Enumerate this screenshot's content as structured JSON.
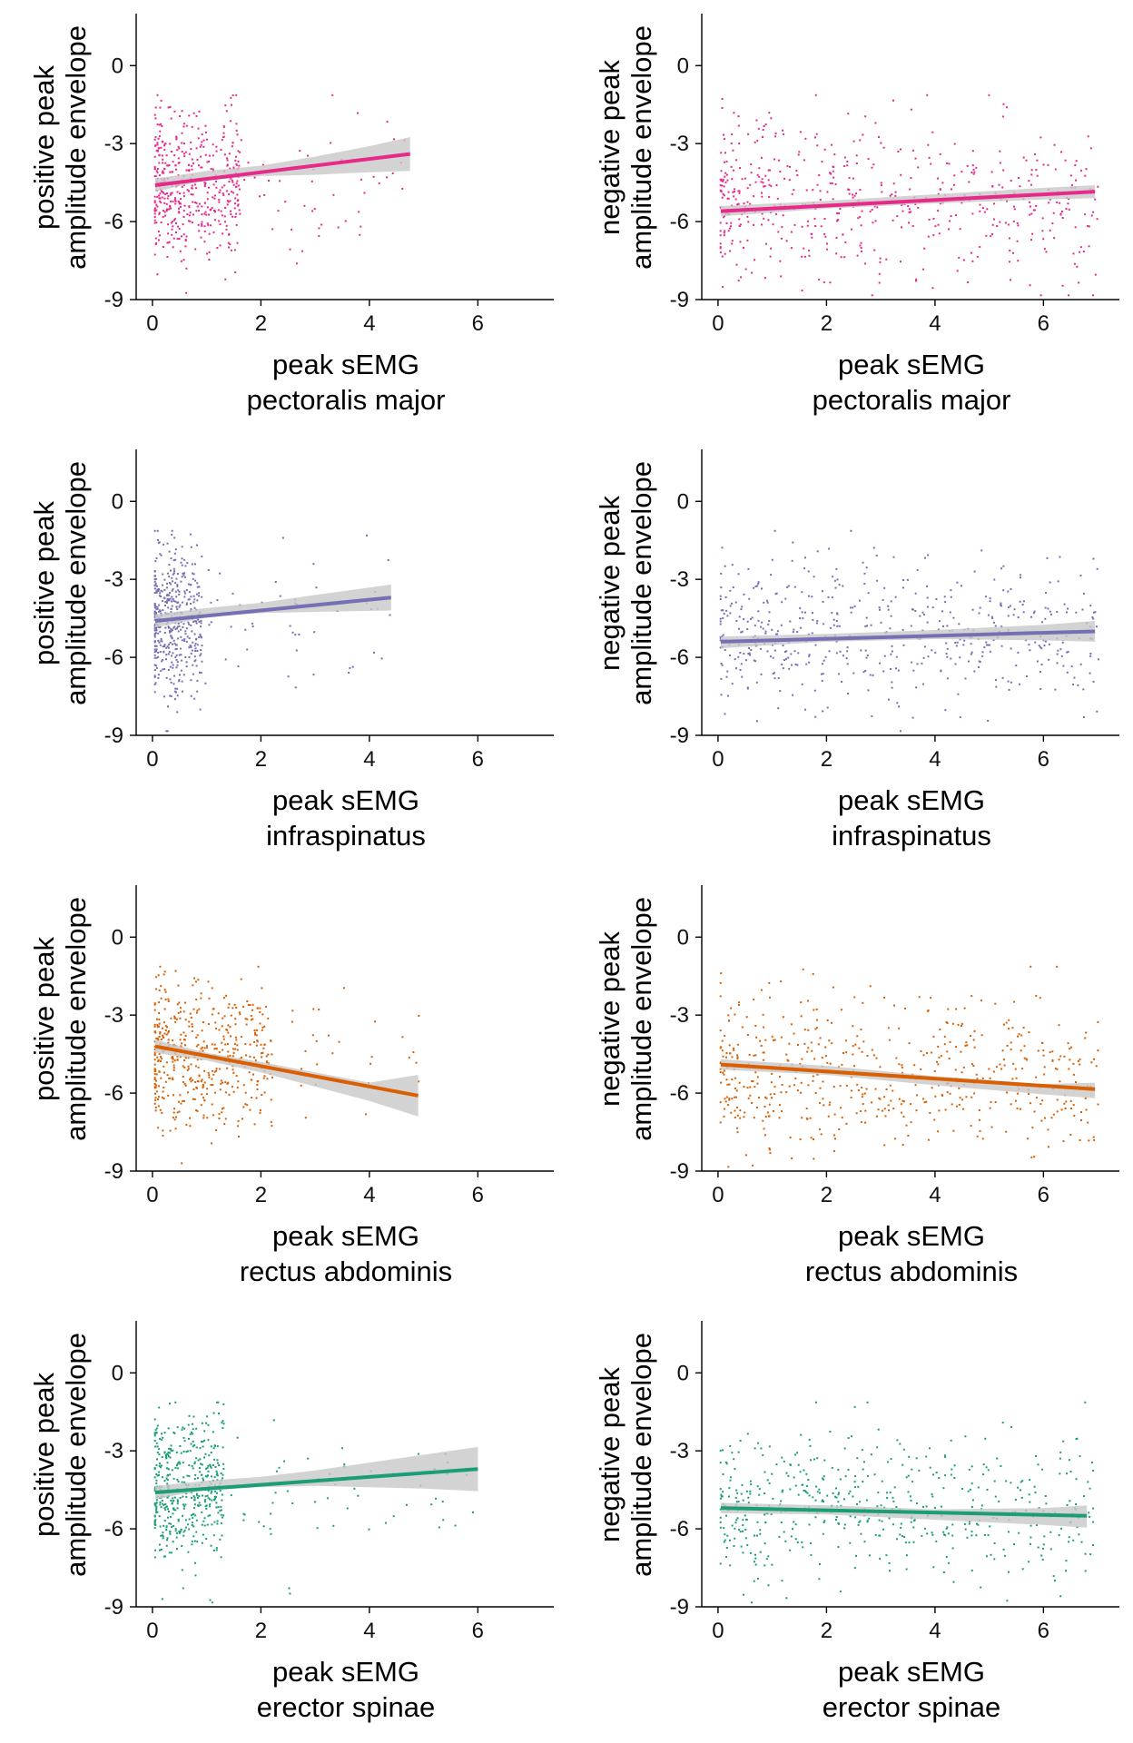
{
  "colors": {
    "pectoralis": "#e7298a",
    "infraspinatus": "#7570b3",
    "rectus": "#d95f02",
    "erector": "#1b9e77",
    "ci_band": "#c8c8c8",
    "axis": "#000000"
  },
  "chart_data": [
    {
      "type": "scatter",
      "panel": "row1-left",
      "color_key": "pectoralis",
      "ylabel_line1": "positive peak",
      "ylabel_line2": "amplitude envelope",
      "xlabel_line1": "peak sEMG",
      "xlabel_line2": "pectoralis major",
      "xlim": [
        -0.3,
        7.4
      ],
      "ylim": [
        -9,
        2
      ],
      "xticks": [
        0,
        2,
        4,
        6
      ],
      "yticks": [
        -9,
        -6,
        -3,
        0
      ],
      "fit": {
        "x": [
          0.05,
          4.75
        ],
        "y": [
          -4.6,
          -3.4
        ]
      },
      "ci": {
        "x": [
          0.05,
          1.0,
          2.0,
          3.0,
          4.0,
          4.75
        ],
        "lower": [
          -4.85,
          -4.4,
          -4.25,
          -4.2,
          -4.1,
          -4.05
        ],
        "upper": [
          -4.35,
          -4.05,
          -3.85,
          -3.5,
          -3.1,
          -2.75
        ]
      },
      "points_summary": {
        "n": 520,
        "cluster_x": [
          0,
          1.6
        ],
        "cluster_y_mean": -4.5,
        "cluster_y_sd": 1.4,
        "sparse_x_max": 4.8
      }
    },
    {
      "type": "scatter",
      "panel": "row1-right",
      "color_key": "pectoralis",
      "ylabel_line1": "negative peak",
      "ylabel_line2": "amplitude envelope",
      "xlabel_line1": "peak sEMG",
      "xlabel_line2": "pectoralis major",
      "xlim": [
        -0.3,
        7.4
      ],
      "ylim": [
        -9,
        2
      ],
      "xticks": [
        0,
        2,
        4,
        6
      ],
      "yticks": [
        -9,
        -6,
        -3,
        0
      ],
      "fit": {
        "x": [
          0.05,
          6.95
        ],
        "y": [
          -5.6,
          -4.85
        ]
      },
      "ci": {
        "x": [
          0.05,
          2.0,
          4.0,
          6.0,
          6.95
        ],
        "lower": [
          -5.8,
          -5.5,
          -5.3,
          -5.15,
          -5.1
        ],
        "upper": [
          -5.4,
          -5.2,
          -4.95,
          -4.7,
          -4.6
        ]
      },
      "points_summary": {
        "n": 560,
        "cluster_x": [
          0,
          7
        ],
        "cluster_y_mean": -5.2,
        "cluster_y_sd": 1.5,
        "sparse_x_max": 7.0
      }
    },
    {
      "type": "scatter",
      "panel": "row2-left",
      "color_key": "infraspinatus",
      "ylabel_line1": "positive peak",
      "ylabel_line2": "amplitude envelope",
      "xlabel_line1": "peak sEMG",
      "xlabel_line2": "infraspinatus",
      "xlim": [
        -0.3,
        7.4
      ],
      "ylim": [
        -9,
        2
      ],
      "xticks": [
        0,
        2,
        4,
        6
      ],
      "yticks": [
        -9,
        -6,
        -3,
        0
      ],
      "fit": {
        "x": [
          0.05,
          4.4
        ],
        "y": [
          -4.6,
          -3.7
        ]
      },
      "ci": {
        "x": [
          0.05,
          1.0,
          2.0,
          3.0,
          4.4
        ],
        "lower": [
          -4.85,
          -4.45,
          -4.3,
          -4.25,
          -4.2
        ],
        "upper": [
          -4.35,
          -4.1,
          -3.9,
          -3.6,
          -3.2
        ]
      },
      "points_summary": {
        "n": 500,
        "cluster_x": [
          0,
          0.9
        ],
        "cluster_y_mean": -4.5,
        "cluster_y_sd": 1.4,
        "sparse_x_max": 4.4
      }
    },
    {
      "type": "scatter",
      "panel": "row2-right",
      "color_key": "infraspinatus",
      "ylabel_line1": "negative peak",
      "ylabel_line2": "amplitude envelope",
      "xlabel_line1": "peak sEMG",
      "xlabel_line2": "infraspinatus",
      "xlim": [
        -0.3,
        7.4
      ],
      "ylim": [
        -9,
        2
      ],
      "xticks": [
        0,
        2,
        4,
        6
      ],
      "yticks": [
        -9,
        -6,
        -3,
        0
      ],
      "fit": {
        "x": [
          0.05,
          6.95
        ],
        "y": [
          -5.4,
          -5.0
        ]
      },
      "ci": {
        "x": [
          0.05,
          2.0,
          4.0,
          6.0,
          6.95
        ],
        "lower": [
          -5.65,
          -5.4,
          -5.3,
          -5.35,
          -5.4
        ],
        "upper": [
          -5.2,
          -5.1,
          -4.95,
          -4.75,
          -4.6
        ]
      },
      "points_summary": {
        "n": 540,
        "cluster_x": [
          0,
          7
        ],
        "cluster_y_mean": -5.0,
        "cluster_y_sd": 1.4,
        "sparse_x_max": 7.0
      }
    },
    {
      "type": "scatter",
      "panel": "row3-left",
      "color_key": "rectus",
      "ylabel_line1": "positive peak",
      "ylabel_line2": "amplitude envelope",
      "xlabel_line1": "peak sEMG",
      "xlabel_line2": "rectus abdominis",
      "xlim": [
        -0.3,
        7.4
      ],
      "ylim": [
        -9,
        2
      ],
      "xticks": [
        0,
        2,
        4,
        6
      ],
      "yticks": [
        -9,
        -6,
        -3,
        0
      ],
      "fit": {
        "x": [
          0.05,
          4.9
        ],
        "y": [
          -4.2,
          -6.1
        ]
      },
      "ci": {
        "x": [
          0.05,
          1.0,
          2.0,
          3.0,
          4.0,
          4.9
        ],
        "lower": [
          -4.45,
          -4.75,
          -5.2,
          -5.75,
          -6.3,
          -6.9
        ],
        "upper": [
          -3.95,
          -4.45,
          -4.8,
          -5.2,
          -5.6,
          -5.3
        ]
      },
      "points_summary": {
        "n": 520,
        "cluster_x": [
          0,
          2.2
        ],
        "cluster_y_mean": -4.5,
        "cluster_y_sd": 1.4,
        "sparse_x_max": 4.9
      }
    },
    {
      "type": "scatter",
      "panel": "row3-right",
      "color_key": "rectus",
      "ylabel_line1": "negative peak",
      "ylabel_line2": "amplitude envelope",
      "xlabel_line1": "peak sEMG",
      "xlabel_line2": "rectus abdominis",
      "xlim": [
        -0.3,
        7.4
      ],
      "ylim": [
        -9,
        2
      ],
      "xticks": [
        0,
        2,
        4,
        6
      ],
      "yticks": [
        -9,
        -6,
        -3,
        0
      ],
      "fit": {
        "x": [
          0.05,
          6.95
        ],
        "y": [
          -4.9,
          -5.85
        ]
      },
      "ci": {
        "x": [
          0.05,
          2.0,
          4.0,
          6.0,
          6.95
        ],
        "lower": [
          -5.1,
          -5.3,
          -5.7,
          -6.05,
          -6.2
        ],
        "upper": [
          -4.7,
          -4.95,
          -5.35,
          -5.65,
          -5.6
        ]
      },
      "points_summary": {
        "n": 560,
        "cluster_x": [
          0,
          7
        ],
        "cluster_y_mean": -5.2,
        "cluster_y_sd": 1.5,
        "sparse_x_max": 7.0
      }
    },
    {
      "type": "scatter",
      "panel": "row4-left",
      "color_key": "erector",
      "ylabel_line1": "positive peak",
      "ylabel_line2": "amplitude envelope",
      "xlabel_line1": "peak sEMG",
      "xlabel_line2": "erector spinae",
      "xlim": [
        -0.3,
        7.4
      ],
      "ylim": [
        -9,
        2
      ],
      "xticks": [
        0,
        2,
        4,
        6
      ],
      "yticks": [
        -9,
        -6,
        -3,
        0
      ],
      "fit": {
        "x": [
          0.05,
          6.0
        ],
        "y": [
          -4.6,
          -3.7
        ]
      },
      "ci": {
        "x": [
          0.05,
          1.0,
          2.0,
          3.0,
          4.0,
          5.0,
          6.0
        ],
        "lower": [
          -4.85,
          -4.5,
          -4.4,
          -4.35,
          -4.4,
          -4.45,
          -4.55
        ],
        "upper": [
          -4.35,
          -4.15,
          -4.0,
          -3.75,
          -3.45,
          -3.15,
          -2.85
        ]
      },
      "points_summary": {
        "n": 520,
        "cluster_x": [
          0,
          1.3
        ],
        "cluster_y_mean": -4.5,
        "cluster_y_sd": 1.4,
        "sparse_x_max": 6.0
      }
    },
    {
      "type": "scatter",
      "panel": "row4-right",
      "color_key": "erector",
      "ylabel_line1": "negative peak",
      "ylabel_line2": "amplitude envelope",
      "xlabel_line1": "peak sEMG",
      "xlabel_line2": "erector spinae",
      "xlim": [
        -0.3,
        7.4
      ],
      "ylim": [
        -9,
        2
      ],
      "xticks": [
        0,
        2,
        4,
        6
      ],
      "yticks": [
        -9,
        -6,
        -3,
        0
      ],
      "fit": {
        "x": [
          0.05,
          6.8
        ],
        "y": [
          -5.2,
          -5.5
        ]
      },
      "ci": {
        "x": [
          0.05,
          2.0,
          4.0,
          6.0,
          6.8
        ],
        "lower": [
          -5.4,
          -5.45,
          -5.65,
          -5.85,
          -5.95
        ],
        "upper": [
          -5.0,
          -5.1,
          -5.25,
          -5.2,
          -5.1
        ]
      },
      "points_summary": {
        "n": 540,
        "cluster_x": [
          0,
          7
        ],
        "cluster_y_mean": -5.1,
        "cluster_y_sd": 1.4,
        "sparse_x_max": 6.9
      }
    }
  ]
}
